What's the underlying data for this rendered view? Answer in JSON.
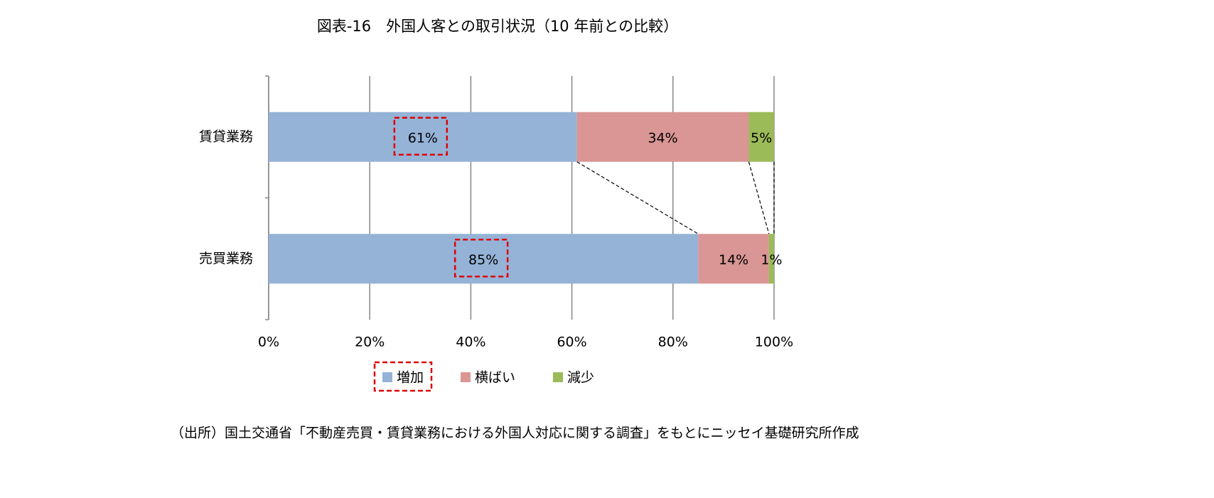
{
  "chart_data": {
    "type": "bar",
    "orientation": "horizontal",
    "stacked": true,
    "title": "図表-16　外国人客との取引状況（10 年前との比較）",
    "categories": [
      "賃貸業務",
      "売買業務"
    ],
    "series": [
      {
        "name": "増加",
        "color": "#95b3d7",
        "values": [
          61,
          85
        ],
        "value_labels": [
          "61%",
          "85%"
        ]
      },
      {
        "name": "横ばい",
        "color": "#d99694",
        "values": [
          34,
          14
        ],
        "value_labels": [
          "34%",
          "14%"
        ]
      },
      {
        "name": "減少",
        "color": "#9bbb59",
        "values": [
          5,
          1
        ],
        "value_labels": [
          "5%",
          "1%"
        ]
      }
    ],
    "xlim": [
      0,
      100
    ],
    "xticks": [
      {
        "value": 0,
        "label": "0%"
      },
      {
        "value": 20,
        "label": "20%"
      },
      {
        "value": 40,
        "label": "40%"
      },
      {
        "value": 60,
        "label": "60%"
      },
      {
        "value": 80,
        "label": "80%"
      },
      {
        "value": 100,
        "label": "100%"
      }
    ],
    "grid": true,
    "legend": "bottom",
    "source": "（出所）国土交通省「不動産売買・賃貸業務における外国人対応に関する調査」をもとにニッセイ基礎研究所作成"
  }
}
